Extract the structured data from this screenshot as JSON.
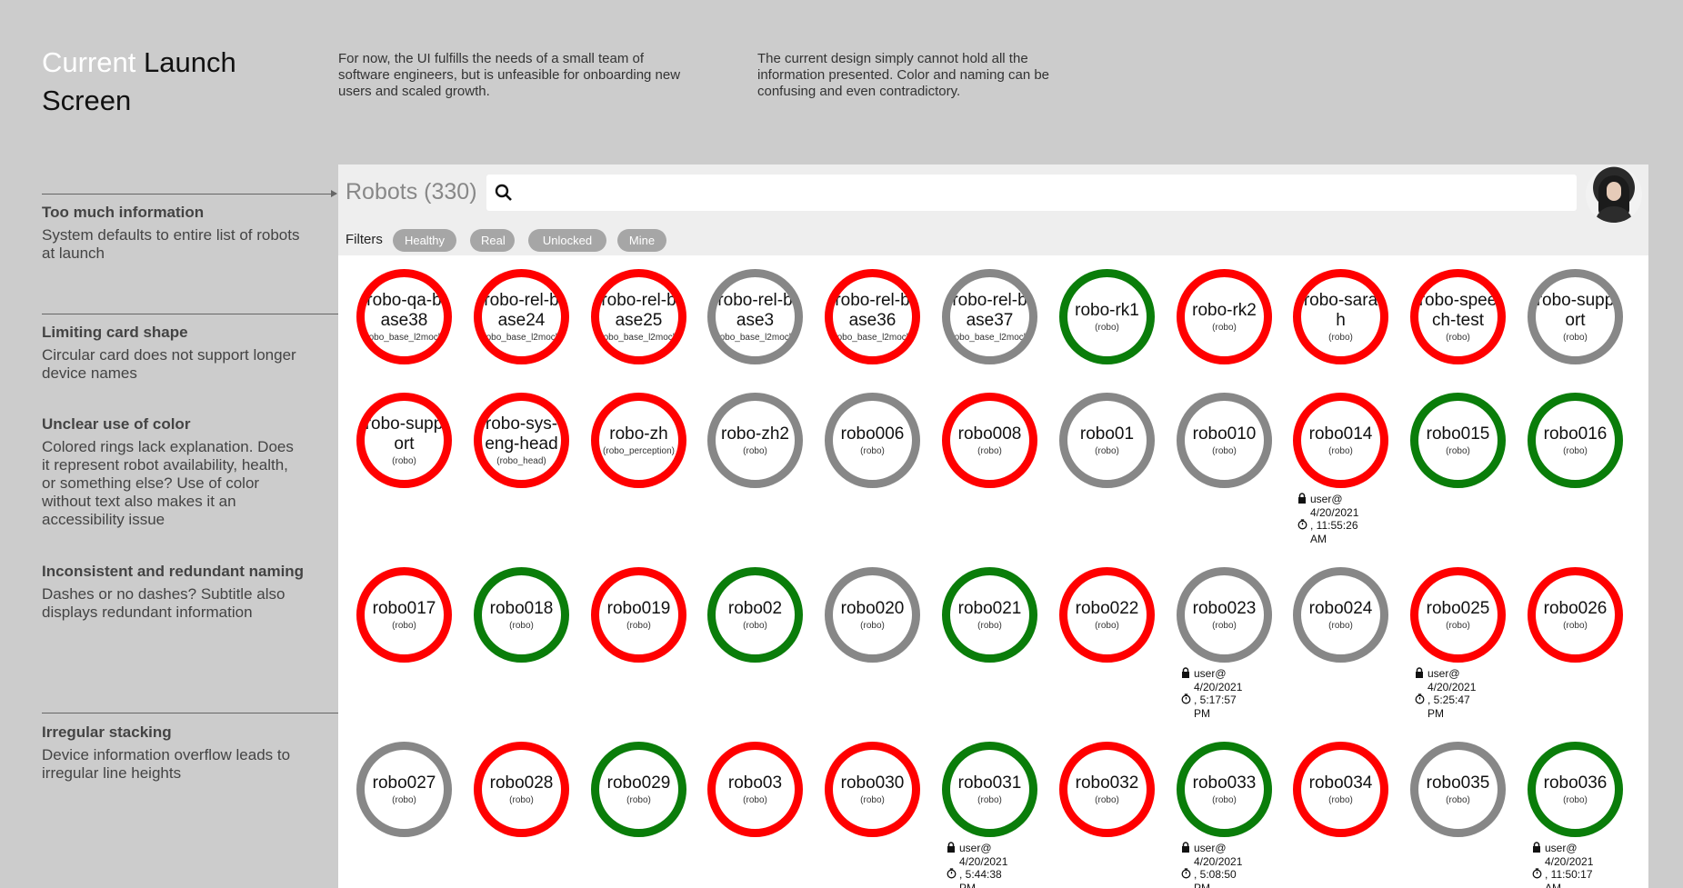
{
  "title": {
    "highlight": "Current",
    "rest": " Launch Screen"
  },
  "intro": [
    "For now, the UI fulfills the needs of a small team of software engineers, but is unfeasible for onboarding new users and scaled growth.",
    "The current design simply cannot hold all the information presented. Color and naming can be confusing and even contradictory."
  ],
  "annotations": [
    {
      "heading": "Too much information",
      "body": "System defaults to entire list of robots at launch"
    },
    {
      "heading": "Limiting card shape",
      "body": "Circular card does not support longer device names"
    },
    {
      "heading": "Unclear use of color",
      "body": "Colored rings lack explanation. Does it represent robot availability, health, or something else? Use of color without text also makes it an accessibility issue"
    },
    {
      "heading": "Inconsistent and redundant naming",
      "body": "Dashes or no dashes? Subtitle also displays redundant information"
    },
    {
      "heading": "Irregular stacking",
      "body": "Device information overflow leads to irregular line heights"
    }
  ],
  "app": {
    "robots_title": "Robots (330)",
    "search": {
      "placeholder": "",
      "icon": "search-icon"
    },
    "filters_label": "Filters",
    "filters": [
      "Healthy",
      "Real",
      "Unlocked",
      "Mine"
    ],
    "colors": {
      "red": "#ff0000",
      "green": "#0a7d0a",
      "gray": "#878787"
    },
    "rows": [
      [
        {
          "name": "robo-qa-base38",
          "sub": "(robo_base_l2mock)",
          "color": "red"
        },
        {
          "name": "robo-rel-base24",
          "sub": "(robo_base_l2mock)",
          "color": "red"
        },
        {
          "name": "robo-rel-base25",
          "sub": "(robo_base_l2mock)",
          "color": "red"
        },
        {
          "name": "robo-rel-base3",
          "sub": "(robo_base_l2mock)",
          "color": "gray"
        },
        {
          "name": "robo-rel-base36",
          "sub": "(robo_base_l2mock)",
          "color": "red"
        },
        {
          "name": "robo-rel-base37",
          "sub": "(robo_base_l2mock)",
          "color": "gray"
        },
        {
          "name": "robo-rk1",
          "sub": "(robo)",
          "color": "green"
        },
        {
          "name": "robo-rk2",
          "sub": "(robo)",
          "color": "red"
        },
        {
          "name": "robo-sarah",
          "sub": "(robo)",
          "color": "red"
        },
        {
          "name": "robo-speech-test",
          "sub": "(robo)",
          "color": "red"
        },
        {
          "name": "robo-support",
          "sub": "(robo)",
          "color": "gray"
        }
      ],
      [
        {
          "name": "robo-support",
          "sub": "(robo)",
          "color": "red"
        },
        {
          "name": "robo-sys-eng-head",
          "sub": "(robo_head)",
          "color": "red"
        },
        {
          "name": "robo-zh",
          "sub": "(robo_perception)",
          "color": "red"
        },
        {
          "name": "robo-zh2",
          "sub": "(robo)",
          "color": "gray"
        },
        {
          "name": "robo006",
          "sub": "(robo)",
          "color": "gray"
        },
        {
          "name": "robo008",
          "sub": "(robo)",
          "color": "red"
        },
        {
          "name": "robo01",
          "sub": "(robo)",
          "color": "gray"
        },
        {
          "name": "robo010",
          "sub": "(robo)",
          "color": "gray"
        },
        {
          "name": "robo014",
          "sub": "(robo)",
          "color": "red",
          "lock": {
            "user": "user@",
            "date": "4/20/2021",
            "time": ", 11:55:26",
            "ampm": "AM"
          }
        },
        {
          "name": "robo015",
          "sub": "(robo)",
          "color": "green"
        },
        {
          "name": "robo016",
          "sub": "(robo)",
          "color": "green"
        }
      ],
      [
        {
          "name": "robo017",
          "sub": "(robo)",
          "color": "red"
        },
        {
          "name": "robo018",
          "sub": "(robo)",
          "color": "green"
        },
        {
          "name": "robo019",
          "sub": "(robo)",
          "color": "red"
        },
        {
          "name": "robo02",
          "sub": "(robo)",
          "color": "green"
        },
        {
          "name": "robo020",
          "sub": "(robo)",
          "color": "gray"
        },
        {
          "name": "robo021",
          "sub": "(robo)",
          "color": "green"
        },
        {
          "name": "robo022",
          "sub": "(robo)",
          "color": "red"
        },
        {
          "name": "robo023",
          "sub": "(robo)",
          "color": "gray",
          "lock": {
            "user": "user@",
            "date": "4/20/2021",
            "time": ", 5:17:57",
            "ampm": "PM"
          }
        },
        {
          "name": "robo024",
          "sub": "(robo)",
          "color": "gray"
        },
        {
          "name": "robo025",
          "sub": "(robo)",
          "color": "red",
          "lock": {
            "user": "user@",
            "date": "4/20/2021",
            "time": ", 5:25:47",
            "ampm": "PM"
          }
        },
        {
          "name": "robo026",
          "sub": "(robo)",
          "color": "red"
        }
      ],
      [
        {
          "name": "robo027",
          "sub": "(robo)",
          "color": "gray"
        },
        {
          "name": "robo028",
          "sub": "(robo)",
          "color": "red"
        },
        {
          "name": "robo029",
          "sub": "(robo)",
          "color": "green"
        },
        {
          "name": "robo03",
          "sub": "(robo)",
          "color": "red"
        },
        {
          "name": "robo030",
          "sub": "(robo)",
          "color": "red"
        },
        {
          "name": "robo031",
          "sub": "(robo)",
          "color": "green",
          "lock": {
            "user": "user@",
            "date": "4/20/2021",
            "time": ", 5:44:38",
            "ampm": "PM"
          }
        },
        {
          "name": "robo032",
          "sub": "(robo)",
          "color": "red"
        },
        {
          "name": "robo033",
          "sub": "(robo)",
          "color": "green",
          "lock": {
            "user": "user@",
            "date": "4/20/2021",
            "time": ", 5:08:50",
            "ampm": "PM"
          }
        },
        {
          "name": "robo034",
          "sub": "(robo)",
          "color": "red"
        },
        {
          "name": "robo035",
          "sub": "(robo)",
          "color": "gray"
        },
        {
          "name": "robo036",
          "sub": "(robo)",
          "color": "green",
          "lock": {
            "user": "user@",
            "date": "4/20/2021",
            "time": ", 11:50:17",
            "ampm": "AM"
          }
        }
      ]
    ]
  }
}
